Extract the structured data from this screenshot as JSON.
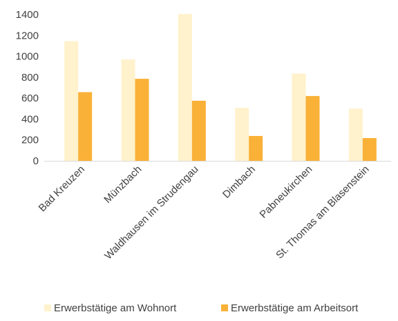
{
  "chart_data": {
    "type": "bar",
    "categories": [
      "Bad Kreuzen",
      "Münzbach",
      "Waldhausen im Strudengau",
      "Dimbach",
      "Pabneukirchen",
      "St. Thomas am Blasenstein"
    ],
    "series": [
      {
        "name": "Erwerbstätige am Wohnort",
        "values": [
          1145,
          970,
          1405,
          507,
          835,
          500
        ],
        "color": "#FFF2CC"
      },
      {
        "name": "Erwerbstätige am Arbeitsort",
        "values": [
          657,
          785,
          575,
          238,
          620,
          218
        ],
        "color": "#F9B137"
      }
    ],
    "yticks": [
      0,
      200,
      400,
      600,
      800,
      1000,
      1200,
      1400
    ],
    "ylim": [
      0,
      1400
    ],
    "grid": false,
    "legend_position": "bottom",
    "title": "",
    "xlabel": "",
    "ylabel": ""
  }
}
